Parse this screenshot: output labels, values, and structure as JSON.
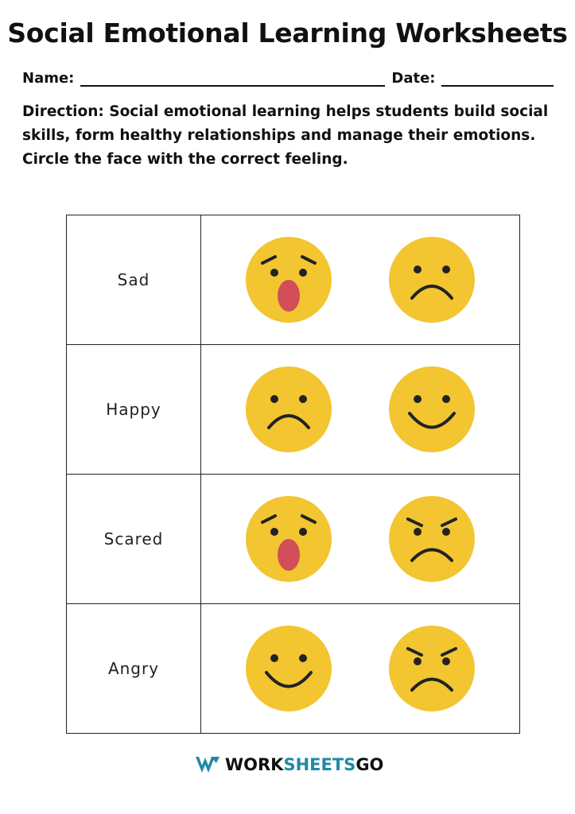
{
  "title": "Social Emotional Learning Worksheets",
  "name_label": "Name:",
  "date_label": "Date:",
  "direction": "Direction: Social emotional learning helps students build social skills, form healthy relationships and manage their emotions. Circle the face with the correct feeling.",
  "rows": [
    {
      "label": "Sad",
      "faces": [
        "surprised",
        "sad"
      ]
    },
    {
      "label": "Happy",
      "faces": [
        "sad",
        "happy"
      ]
    },
    {
      "label": "Scared",
      "faces": [
        "surprised",
        "angry"
      ]
    },
    {
      "label": "Angry",
      "faces": [
        "happy",
        "angry"
      ]
    }
  ],
  "colors": {
    "face": "#f2c531",
    "mouth": "#d24e58",
    "brand": "#1e8aa6"
  },
  "footer": {
    "brand_part1": "WORK",
    "brand_part2": "SHEETS",
    "brand_part3": "GO"
  }
}
